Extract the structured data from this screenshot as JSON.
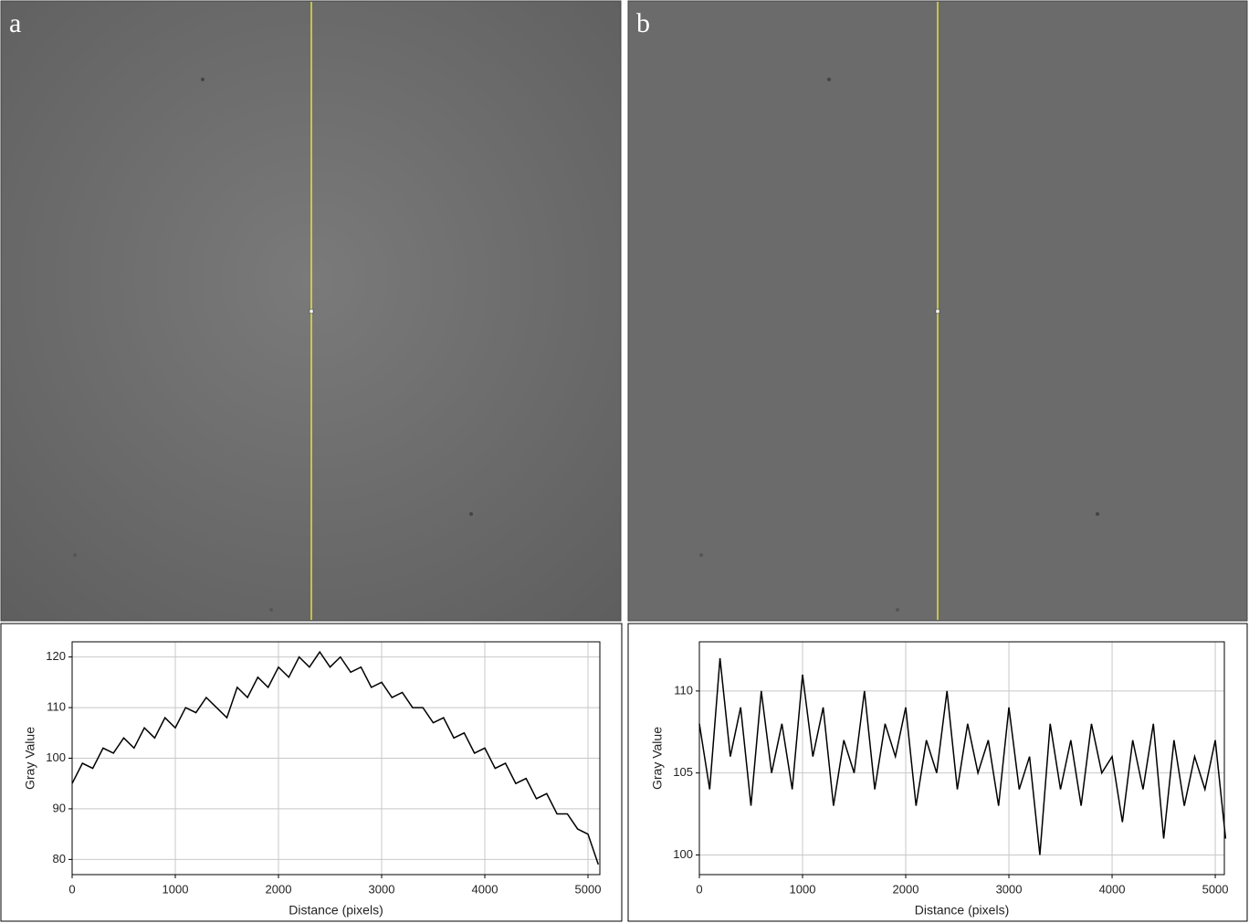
{
  "panels": [
    {
      "label": "a"
    },
    {
      "label": "b"
    }
  ],
  "chart_data": [
    {
      "type": "line",
      "xlabel": "Distance (pixels)",
      "ylabel": "Gray Value",
      "x": [
        0,
        100,
        200,
        300,
        400,
        500,
        600,
        700,
        800,
        900,
        1000,
        1100,
        1200,
        1300,
        1400,
        1500,
        1600,
        1700,
        1800,
        1900,
        2000,
        2100,
        2200,
        2300,
        2400,
        2500,
        2600,
        2700,
        2800,
        2900,
        3000,
        3100,
        3200,
        3300,
        3400,
        3500,
        3600,
        3700,
        3800,
        3900,
        4000,
        4100,
        4200,
        4300,
        4400,
        4500,
        4600,
        4700,
        4800,
        4900,
        5000,
        5100
      ],
      "series": [
        {
          "color": "#000000",
          "values": [
            95,
            99,
            98,
            102,
            101,
            104,
            102,
            106,
            104,
            108,
            106,
            110,
            109,
            112,
            110,
            108,
            114,
            112,
            116,
            114,
            118,
            116,
            120,
            118,
            121,
            118,
            120,
            117,
            118,
            114,
            115,
            112,
            113,
            110,
            110,
            107,
            108,
            104,
            105,
            101,
            102,
            98,
            99,
            95,
            96,
            92,
            93,
            89,
            89,
            86,
            85,
            79
          ]
        }
      ],
      "xlim": [
        0,
        5115
      ],
      "ylim": [
        77,
        123
      ],
      "xticks": [
        0,
        1000,
        2000,
        3000,
        4000,
        5000
      ],
      "yticks": [
        80,
        90,
        100,
        110,
        120
      ],
      "grid": true
    },
    {
      "type": "line",
      "xlabel": "Distance (pixels)",
      "ylabel": "Gray Value",
      "x": [
        0,
        100,
        200,
        300,
        400,
        500,
        600,
        700,
        800,
        900,
        1000,
        1100,
        1200,
        1300,
        1400,
        1500,
        1600,
        1700,
        1800,
        1900,
        2000,
        2100,
        2200,
        2300,
        2400,
        2500,
        2600,
        2700,
        2800,
        2900,
        3000,
        3100,
        3200,
        3300,
        3400,
        3500,
        3600,
        3700,
        3800,
        3900,
        4000,
        4100,
        4200,
        4300,
        4400,
        4500,
        4600,
        4700,
        4800,
        4900,
        5000,
        5100
      ],
      "series": [
        {
          "color": "#000000",
          "values": [
            108,
            104,
            112,
            106,
            109,
            103,
            110,
            105,
            108,
            104,
            111,
            106,
            109,
            103,
            107,
            105,
            110,
            104,
            108,
            106,
            109,
            103,
            107,
            105,
            110,
            104,
            108,
            105,
            107,
            103,
            109,
            104,
            106,
            100,
            108,
            104,
            107,
            103,
            108,
            105,
            106,
            102,
            107,
            104,
            108,
            101,
            107,
            103,
            106,
            104,
            107,
            101
          ]
        }
      ],
      "xlim": [
        0,
        5088
      ],
      "ylim": [
        98.8,
        113
      ],
      "xticks": [
        0,
        1000,
        2000,
        3000,
        4000,
        5000
      ],
      "yticks": [
        100,
        105,
        110
      ],
      "grid": true
    }
  ]
}
